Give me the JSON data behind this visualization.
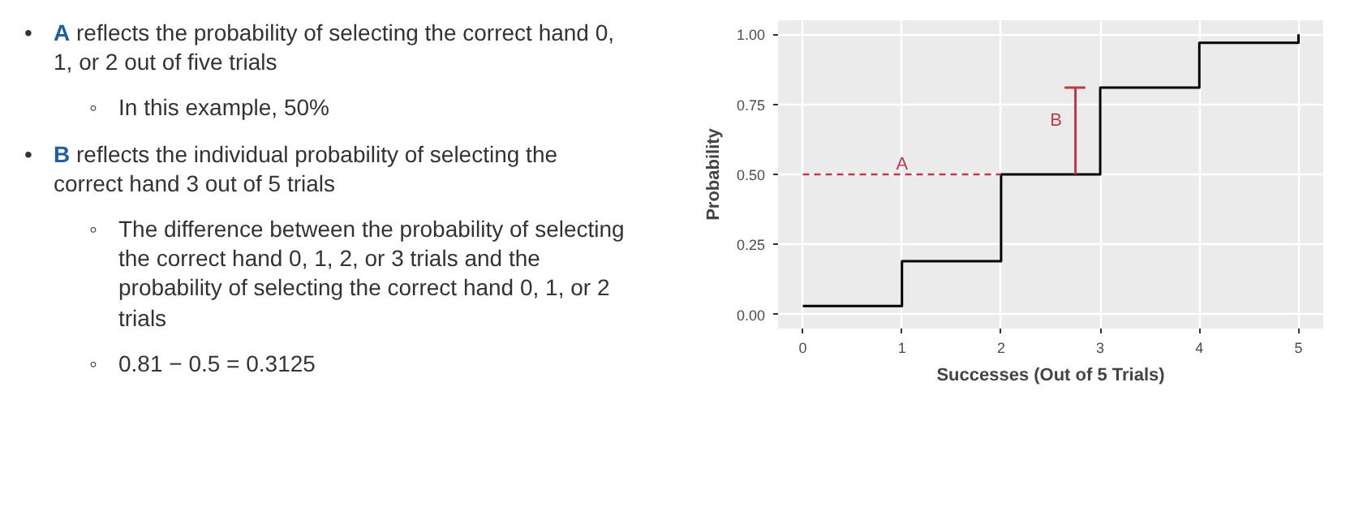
{
  "chart_data": {
    "type": "step",
    "xlabel": "Successes (Out of 5 Trials)",
    "ylabel": "Probability",
    "series": [
      {
        "x": [
          0,
          1,
          2,
          3,
          4,
          5
        ],
        "values": [
          0.03,
          0.19,
          0.5,
          0.81,
          0.97,
          1.0
        ],
        "color": "#000000"
      },
      {
        "name": "B",
        "type": "line",
        "x": [
          2.75,
          2.75,
          2.65,
          2.85
        ],
        "values": [
          0.5,
          0.81,
          0.81,
          0.81
        ],
        "color": "#c0394b"
      }
    ],
    "xlim": [
      -0.25,
      5.25
    ],
    "ylim": [
      -0.05,
      1.05
    ],
    "xticks": [
      0,
      1,
      2,
      3,
      4,
      5
    ],
    "yticks": [
      {
        "value": 0,
        "label": "0.00"
      },
      {
        "value": 0.25,
        "label": "0.25"
      },
      {
        "value": 0.5,
        "label": "0.50"
      },
      {
        "value": 0.75,
        "label": "0.75"
      },
      {
        "value": 1,
        "label": "1.00"
      }
    ],
    "grid": true,
    "ref_lines": [
      {
        "axis": "y",
        "value": 0.5,
        "label": "A",
        "color": "#c0394b",
        "line_style": "dashed"
      }
    ],
    "annotations": [
      "• A reflects the probability of selecting the correct hand 0, 1, or 2 out of five trials",
      "◦ In this example, 50%",
      "• B reflects the individual probability of selecting the correct hand 3 out of 5 trials",
      "◦ The difference between the probability of selecting the correct hand 0, 1, 2, or 3 trials and the probability of selecting the correct hand 0, 1, or 2 trials",
      "◦ 0.81 − 0.5 = 0.3125"
    ]
  }
}
